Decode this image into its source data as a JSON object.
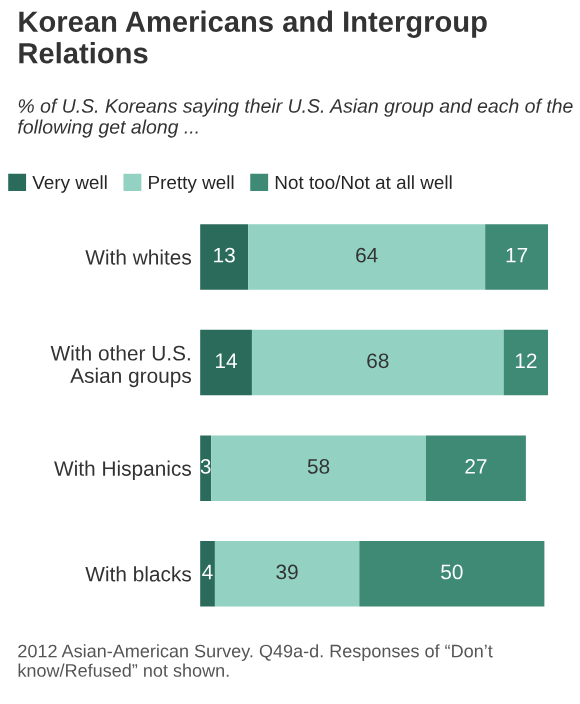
{
  "chart_data": {
    "type": "bar",
    "orientation": "horizontal",
    "stacked": true,
    "data_labels": true,
    "legend": "top",
    "grid": false,
    "title": "Korean Americans and Intergroup\nRelations",
    "subtitle": "% of U.S. Koreans saying their U.S. Asian group and each of the following get along ...",
    "categories": [
      "With whites",
      "With other U.S.\nAsian groups",
      "With Hispanics",
      "With blacks"
    ],
    "series": [
      {
        "name": "Very well",
        "color": "#2b6b5b",
        "values": [
          13,
          14,
          3,
          4
        ]
      },
      {
        "name": "Pretty well",
        "color": "#93d2c2",
        "values": [
          64,
          68,
          58,
          39
        ]
      },
      {
        "name": "Not too/Not at all well",
        "color": "#3f8a75",
        "values": [
          17,
          12,
          27,
          50
        ]
      }
    ],
    "annotations": [
      "2012 Asian-American Survey. Q49a-d. Responses of “Don’t know/Refused” not shown."
    ]
  }
}
